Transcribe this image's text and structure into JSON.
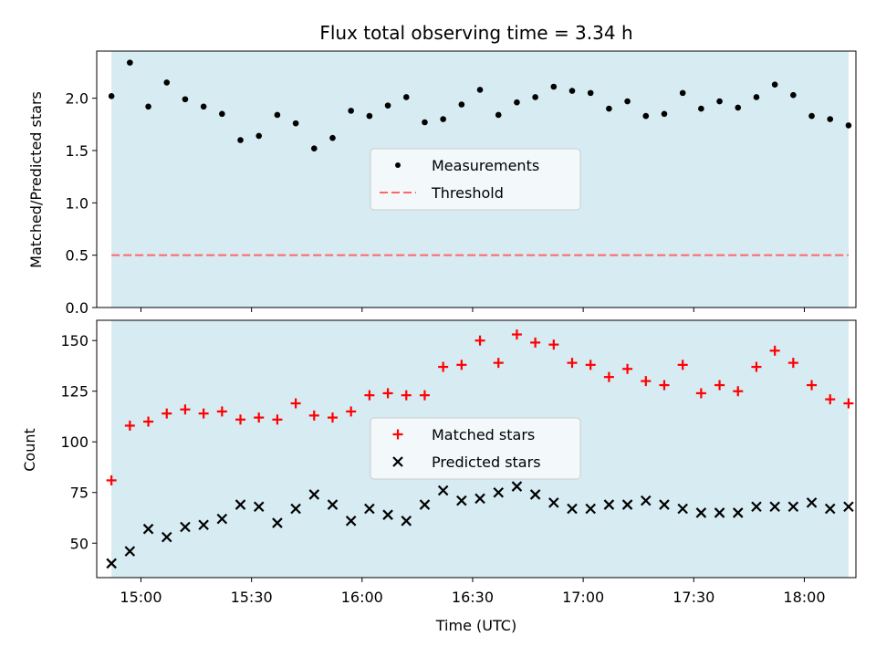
{
  "colors": {
    "background": "#ffffff",
    "observing_span": "#add8e6",
    "measurements": "#000000",
    "threshold": "#ff6666",
    "matched": "#ff0000",
    "predicted": "#000000",
    "legend_bg": "#f8fbfc",
    "legend_border": "#cccccc"
  },
  "chart_data": [
    {
      "type": "scatter",
      "title": "Flux total observing time = 3.34 h",
      "xlabel": "",
      "ylabel": "Matched/Predicted stars",
      "xlim": [
        "14:48",
        "18:14"
      ],
      "ylim": [
        0,
        2.45
      ],
      "yticks": [
        0,
        0.5,
        1.0,
        1.5,
        2.0
      ],
      "ytick_labels": [
        "0.0",
        "0.5",
        "1.0",
        "1.5",
        "2.0"
      ],
      "xticks": [
        "15:00",
        "15:30",
        "16:00",
        "16:30",
        "17:00",
        "17:30",
        "18:00"
      ],
      "observing_span": [
        "14:52",
        "18:12"
      ],
      "x": [
        "14:52",
        "14:57",
        "15:02",
        "15:07",
        "15:12",
        "15:17",
        "15:22",
        "15:27",
        "15:32",
        "15:37",
        "15:42",
        "15:47",
        "15:52",
        "15:57",
        "16:02",
        "16:07",
        "16:12",
        "16:17",
        "16:22",
        "16:27",
        "16:32",
        "16:37",
        "16:42",
        "16:47",
        "16:52",
        "16:57",
        "17:02",
        "17:07",
        "17:12",
        "17:17",
        "17:22",
        "17:27",
        "17:32",
        "17:37",
        "17:42",
        "17:47",
        "17:52",
        "17:57",
        "18:02",
        "18:07",
        "18:12"
      ],
      "series": [
        {
          "name": "Measurements",
          "marker": "dot",
          "values": [
            2.02,
            2.34,
            1.92,
            2.15,
            1.99,
            1.92,
            1.85,
            1.6,
            1.64,
            1.84,
            1.76,
            1.52,
            1.62,
            1.88,
            1.83,
            1.93,
            2.01,
            1.77,
            1.8,
            1.94,
            2.08,
            1.84,
            1.96,
            2.01,
            2.11,
            2.07,
            2.05,
            1.9,
            1.97,
            1.83,
            1.85,
            2.05,
            1.9,
            1.97,
            1.91,
            2.01,
            2.13,
            2.03,
            1.83,
            1.8,
            1.74
          ]
        },
        {
          "name": "Threshold",
          "marker": "dashed-line",
          "constant": 0.5
        }
      ],
      "legend": "center"
    },
    {
      "type": "scatter",
      "title": "",
      "xlabel": "Time (UTC)",
      "ylabel": "Count",
      "xlim": [
        "14:48",
        "18:14"
      ],
      "ylim": [
        33,
        160
      ],
      "yticks": [
        50,
        75,
        100,
        125,
        150
      ],
      "ytick_labels": [
        "50",
        "75",
        "100",
        "125",
        "150"
      ],
      "xticks": [
        "15:00",
        "15:30",
        "16:00",
        "16:30",
        "17:00",
        "17:30",
        "18:00"
      ],
      "observing_span": [
        "14:52",
        "18:12"
      ],
      "x": [
        "14:52",
        "14:57",
        "15:02",
        "15:07",
        "15:12",
        "15:17",
        "15:22",
        "15:27",
        "15:32",
        "15:37",
        "15:42",
        "15:47",
        "15:52",
        "15:57",
        "16:02",
        "16:07",
        "16:12",
        "16:17",
        "16:22",
        "16:27",
        "16:32",
        "16:37",
        "16:42",
        "16:47",
        "16:52",
        "16:57",
        "17:02",
        "17:07",
        "17:12",
        "17:17",
        "17:22",
        "17:27",
        "17:32",
        "17:37",
        "17:42",
        "17:47",
        "17:52",
        "17:57",
        "18:02",
        "18:07",
        "18:12"
      ],
      "series": [
        {
          "name": "Matched stars",
          "marker": "plus",
          "values": [
            81,
            108,
            110,
            114,
            116,
            114,
            115,
            111,
            112,
            111,
            119,
            113,
            112,
            115,
            123,
            124,
            123,
            123,
            137,
            138,
            150,
            139,
            153,
            149,
            148,
            139,
            138,
            132,
            136,
            130,
            128,
            138,
            124,
            128,
            125,
            137,
            145,
            139,
            128,
            121,
            119
          ]
        },
        {
          "name": "Predicted stars",
          "marker": "x",
          "values": [
            40,
            46,
            57,
            53,
            58,
            59,
            62,
            69,
            68,
            60,
            67,
            74,
            69,
            61,
            67,
            64,
            61,
            69,
            76,
            71,
            72,
            75,
            78,
            74,
            70,
            67,
            67,
            69,
            69,
            71,
            69,
            67,
            65,
            65,
            65,
            68,
            68,
            68,
            70,
            67,
            68
          ]
        }
      ],
      "legend": "center"
    }
  ]
}
